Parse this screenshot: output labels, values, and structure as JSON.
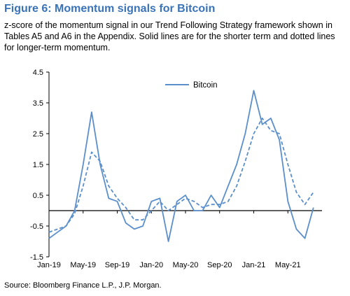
{
  "header": {
    "title": "Figure 6: Momentum signals for Bitcoin",
    "subtitle": "z-score of the momentum signal in our Trend Following Strategy framework shown in Tables A5 and A6 in the Appendix. Solid lines are for the shorter term and dotted lines for longer-term momentum.",
    "source": "Source: Bloomberg Finance L.P., J.P. Morgan."
  },
  "colors": {
    "series": "#5b8fcb",
    "axis": "#000000"
  },
  "chart_data": {
    "type": "line",
    "title": "Figure 6: Momentum signals for Bitcoin",
    "xlabel": "",
    "ylabel": "",
    "ylim": [
      -1.5,
      4.5
    ],
    "yticks": [
      4.5,
      3.5,
      2.5,
      1.5,
      0.5,
      -0.5,
      -1.5
    ],
    "xlim": [
      "2019-01",
      "2021-09"
    ],
    "xticks": [
      "Jan-19",
      "May-19",
      "Sep-19",
      "Jan-20",
      "May-20",
      "Sep-20",
      "Jan-21",
      "May-21"
    ],
    "grid": false,
    "legend": {
      "placement": "top",
      "entries": [
        "Bitcoin"
      ]
    },
    "series": [
      {
        "name": "Bitcoin",
        "style": "solid",
        "x": [
          "2019-01",
          "2019-02",
          "2019-03",
          "2019-04",
          "2019-05",
          "2019-06",
          "2019-07",
          "2019-08",
          "2019-09",
          "2019-10",
          "2019-11",
          "2019-12",
          "2020-01",
          "2020-02",
          "2020-03",
          "2020-04",
          "2020-05",
          "2020-06",
          "2020-07",
          "2020-08",
          "2020-09",
          "2020-10",
          "2020-11",
          "2020-12",
          "2021-01",
          "2021-02",
          "2021-03",
          "2021-04",
          "2021-05",
          "2021-06",
          "2021-07",
          "2021-08"
        ],
        "y": [
          -0.9,
          -0.7,
          -0.5,
          0.0,
          1.5,
          3.2,
          1.5,
          0.4,
          0.3,
          -0.4,
          -0.6,
          -0.5,
          0.3,
          0.4,
          -1.0,
          0.3,
          0.5,
          0.0,
          0.0,
          0.5,
          0.1,
          0.8,
          1.5,
          2.5,
          3.9,
          2.8,
          3.0,
          2.3,
          0.3,
          -0.6,
          -0.9,
          0.1
        ]
      },
      {
        "name": "",
        "style": "dashed",
        "x": [
          "2019-01",
          "2019-02",
          "2019-03",
          "2019-04",
          "2019-05",
          "2019-06",
          "2019-07",
          "2019-08",
          "2019-09",
          "2019-10",
          "2019-11",
          "2019-12",
          "2020-01",
          "2020-02",
          "2020-03",
          "2020-04",
          "2020-05",
          "2020-06",
          "2020-07",
          "2020-08",
          "2020-09",
          "2020-10",
          "2020-11",
          "2020-12",
          "2021-01",
          "2021-02",
          "2021-03",
          "2021-04",
          "2021-05",
          "2021-06",
          "2021-07",
          "2021-08"
        ],
        "y": [
          -0.7,
          -0.6,
          -0.5,
          -0.1,
          0.8,
          1.9,
          1.6,
          0.8,
          0.4,
          0.1,
          -0.3,
          -0.3,
          0.0,
          0.3,
          0.0,
          0.2,
          0.4,
          0.3,
          0.1,
          0.2,
          0.2,
          0.3,
          0.8,
          1.6,
          2.5,
          3.0,
          2.6,
          2.5,
          1.5,
          0.6,
          0.2,
          0.6
        ]
      }
    ]
  }
}
